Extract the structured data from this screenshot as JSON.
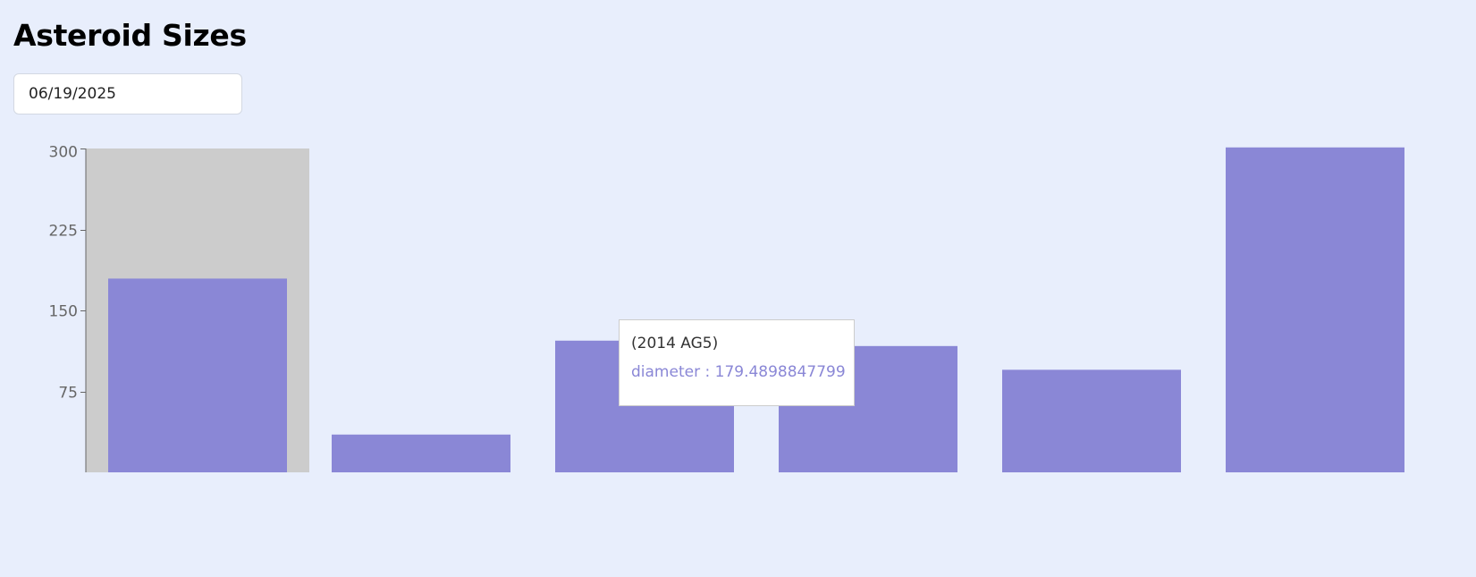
{
  "header": {
    "title": "Asteroid Sizes"
  },
  "date_input": {
    "value": "06/19/2025"
  },
  "colors": {
    "background": "#e8eefc",
    "bar": "#8a87d6",
    "cursor": "#cccccc",
    "axis": "#666666",
    "tick_text": "#666666"
  },
  "tooltip": {
    "label": "(2014 AG5)",
    "item_name": "diameter",
    "separator": " : ",
    "item_value": "179.4898847799"
  },
  "chart_data": {
    "type": "bar",
    "categories": [
      "(2014 AG5)",
      "",
      "",
      "",
      "",
      ""
    ],
    "series": [
      {
        "name": "diameter",
        "values": [
          179.4898847799,
          35,
          122,
          117,
          95,
          301
        ]
      }
    ],
    "ylim": [
      0,
      300
    ],
    "yticks": [
      75,
      150,
      225,
      300
    ],
    "xlabel": "",
    "ylabel": "",
    "grid": false,
    "legend": "none",
    "active_index": 0
  }
}
